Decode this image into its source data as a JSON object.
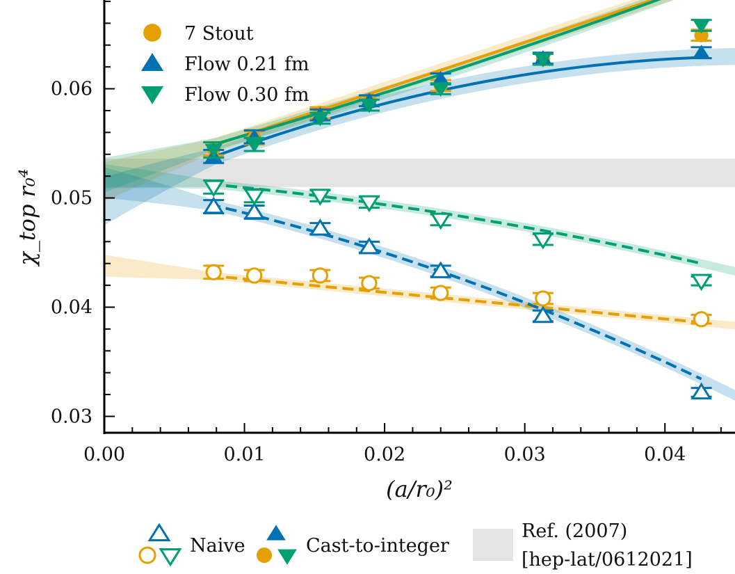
{
  "chart_data": {
    "type": "scatter",
    "xlabel": "(a/r₀)²",
    "ylabel": "χ_top r₀⁴",
    "xlim": [
      0.0,
      0.045
    ],
    "ylim": [
      0.0285,
      0.068
    ],
    "xticks": [
      0.0,
      0.01,
      0.02,
      0.03,
      0.04
    ],
    "xtick_labels": [
      "0.00",
      "0.01",
      "0.02",
      "0.03",
      "0.04"
    ],
    "yticks": [
      0.03,
      0.04,
      0.05,
      0.06
    ],
    "ytick_labels": [
      "0.03",
      "0.04",
      "0.05",
      "0.06"
    ],
    "grid": false,
    "legend_position": "top-left",
    "x": [
      0.0078,
      0.0107,
      0.0154,
      0.0189,
      0.024,
      0.0313,
      0.0426
    ],
    "series": [
      {
        "name": "7 Stout",
        "kind": "cast-to-integer",
        "marker": "circle-filled",
        "color": "#E69F00",
        "values": [
          0.0545,
          0.0555,
          0.0578,
          0.0589,
          0.0603,
          0.0627,
          0.0649
        ],
        "errors": [
          0.0006,
          0.0006,
          0.0005,
          0.0005,
          0.0005,
          0.0005,
          0.0005
        ]
      },
      {
        "name": "Flow 0.21 fm",
        "kind": "cast-to-integer",
        "marker": "triangle-up-filled",
        "color": "#0072B2",
        "values": [
          0.0538,
          0.0556,
          0.0576,
          0.0589,
          0.0609,
          0.0628,
          0.0633
        ],
        "errors": [
          0.0006,
          0.0006,
          0.0005,
          0.0005,
          0.0005,
          0.0005,
          0.0005
        ]
      },
      {
        "name": "Flow 0.30 fm",
        "kind": "cast-to-integer",
        "marker": "triangle-down-filled",
        "color": "#009E73",
        "values": [
          0.0544,
          0.0549,
          0.0573,
          0.0585,
          0.06,
          0.0627,
          0.0658
        ],
        "errors": [
          0.0007,
          0.0006,
          0.0005,
          0.0005,
          0.0005,
          0.0005,
          0.0005
        ]
      },
      {
        "kind": "naive",
        "marker": "circle-open",
        "color": "#E69F00",
        "values": [
          0.0432,
          0.0429,
          0.0429,
          0.0422,
          0.0413,
          0.0408,
          0.0389
        ],
        "errors": [
          0.0006,
          0.0005,
          0.0005,
          0.0005,
          0.0005,
          0.0005,
          0.0004
        ]
      },
      {
        "kind": "naive",
        "marker": "triangle-up-open",
        "color": "#0072B2",
        "values": [
          0.0492,
          0.0487,
          0.0472,
          0.0455,
          0.0433,
          0.0392,
          0.0322
        ],
        "errors": [
          0.0006,
          0.0006,
          0.0005,
          0.0005,
          0.0005,
          0.0005,
          0.0004
        ]
      },
      {
        "kind": "naive",
        "marker": "triangle-down-open",
        "color": "#009E73",
        "values": [
          0.051,
          0.0502,
          0.0502,
          0.0496,
          0.048,
          0.0462,
          0.0424
        ],
        "errors": [
          0.0006,
          0.0006,
          0.0005,
          0.0005,
          0.0005,
          0.0005,
          0.0004
        ]
      }
    ],
    "fits": [
      {
        "series": "7 Stout",
        "style": "solid",
        "color": "#E69F00",
        "coeffs": [
          0.0515,
          0.425,
          0.0
        ],
        "band": 0.0018
      },
      {
        "series": "Flow 0.21 fm",
        "style": "solid",
        "color": "#0072B2",
        "coeffs": [
          0.0497,
          0.569,
          -6.1
        ],
        "band": 0.0022
      },
      {
        "series": "Flow 0.30 fm",
        "style": "solid",
        "color": "#009E73",
        "coeffs": [
          0.0521,
          0.347,
          1.5
        ],
        "band": 0.0016
      },
      {
        "series": "7 Stout naive",
        "style": "dashed",
        "color": "#E69F00",
        "coeffs": [
          0.0438,
          -0.122,
          0.0
        ],
        "band": 0.001
      },
      {
        "series": "Flow 0.21 fm naive",
        "style": "dashed",
        "color": "#0072B2",
        "coeffs": [
          0.0514,
          -0.232,
          -4.46
        ],
        "band": 0.0014
      },
      {
        "series": "Flow 0.30 fm naive",
        "style": "dashed",
        "color": "#009E73",
        "coeffs": [
          0.052,
          -0.08,
          -2.53
        ],
        "band": 0.0011
      }
    ],
    "reference_band": {
      "low": 0.051,
      "high": 0.0536,
      "color": "#e4e4e4"
    },
    "legend_bottom": {
      "naive_label": "Naive",
      "cast_label": "Cast-to-integer",
      "ref_label_line1": "Ref. (2007)",
      "ref_label_line2": "[hep-lat/0612021]"
    }
  }
}
